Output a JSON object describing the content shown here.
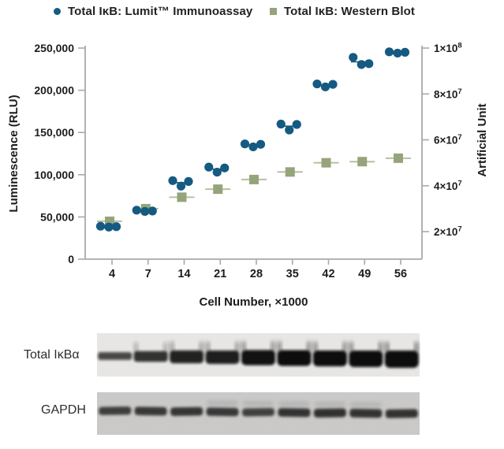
{
  "figure": {
    "legend": {
      "items": [
        {
          "label": "Total IκB: Lumit™ Immunoassay",
          "marker": "circle-marker-icon",
          "color": "#155a81"
        },
        {
          "label": "Total IκB: Western Blot",
          "marker": "square-marker-icon",
          "color": "#95a47a"
        }
      ]
    },
    "blots": {
      "rows": [
        {
          "label": "Total IκBα",
          "lanes": 9,
          "band_intensities": [
            0.4,
            0.62,
            0.78,
            0.82,
            0.95,
            1.0,
            1.0,
            1.05,
            1.1
          ]
        },
        {
          "label": "GAPDH",
          "lanes": 9,
          "band_intensities": [
            0.75,
            0.85,
            0.9,
            0.85,
            0.7,
            0.95,
            1.0,
            0.95,
            0.95
          ]
        }
      ]
    }
  },
  "chart_data": {
    "type": "scatter",
    "categories": [
      4,
      7,
      14,
      21,
      28,
      35,
      42,
      49,
      56
    ],
    "xlabel": "Cell Number, ×1000",
    "left_axis": {
      "label": "Luminescence (RLU)",
      "ylim": [
        0,
        250000
      ],
      "ticks": [
        {
          "label": "0",
          "value": 0
        },
        {
          "label": "50,000",
          "value": 50000
        },
        {
          "label": "100,000",
          "value": 100000
        },
        {
          "label": "150,000",
          "value": 150000
        },
        {
          "label": "200,000",
          "value": 200000
        },
        {
          "label": "250,000",
          "value": 250000
        }
      ]
    },
    "right_axis": {
      "label": "Artificial Unit",
      "ylim": [
        8000000,
        100000000
      ],
      "ticks": [
        {
          "base": "2×10",
          "exp": "7",
          "value": 20000000
        },
        {
          "base": "4×10",
          "exp": "7",
          "value": 40000000
        },
        {
          "base": "6×10",
          "exp": "7",
          "value": 60000000
        },
        {
          "base": "8×10",
          "exp": "7",
          "value": 80000000
        },
        {
          "base": "1×10",
          "exp": "8",
          "value": 100000000
        }
      ]
    },
    "series": [
      {
        "name": "Total IκB: Lumit™ Immunoassay",
        "axis": "left",
        "marker": "circle",
        "color": "#155a81",
        "replicates": [
          [
            39000,
            38000,
            38500
          ],
          [
            58000,
            56500,
            57000
          ],
          [
            93000,
            86500,
            92000
          ],
          [
            109000,
            103000,
            108000
          ],
          [
            136500,
            133000,
            136000
          ],
          [
            160000,
            153000,
            159500
          ],
          [
            207500,
            204000,
            207000
          ],
          [
            239000,
            230500,
            231500
          ],
          [
            245500,
            244000,
            245000
          ]
        ]
      },
      {
        "name": "Total IκB: Western Blot",
        "axis": "right",
        "marker": "square",
        "color": "#95a47a",
        "error_bar_color": "#b6c0a2",
        "values": [
          24500000,
          30000000,
          35000000,
          38500000,
          42700000,
          46000000,
          50000000,
          50500000,
          52000000
        ]
      }
    ],
    "layout": {
      "grid": false,
      "legend_position": "top",
      "axis_color": "#a9a9a9",
      "text_color": "#1c1c1c"
    }
  }
}
